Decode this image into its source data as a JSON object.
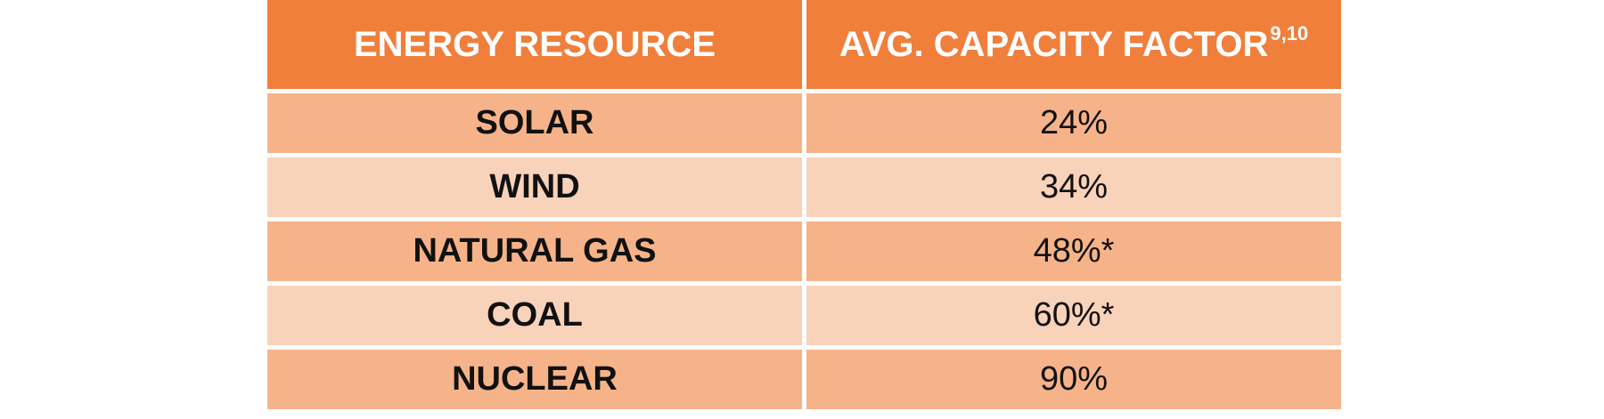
{
  "chart_data": {
    "type": "table",
    "columns": [
      {
        "label": "ENERGY RESOURCE",
        "superscript": ""
      },
      {
        "label": "AVG. CAPACITY FACTOR",
        "superscript": "9,10"
      }
    ],
    "rows": [
      {
        "resource": "SOLAR",
        "value": "24%"
      },
      {
        "resource": "WIND",
        "value": "34%"
      },
      {
        "resource": "NATURAL GAS",
        "value": "48%*"
      },
      {
        "resource": "COAL",
        "value": "60%*"
      },
      {
        "resource": "NUCLEAR",
        "value": "90%"
      }
    ]
  },
  "colors": {
    "header": "#f07f3c",
    "row_dark": "#f6b389",
    "row_light": "#f9d2ba"
  }
}
